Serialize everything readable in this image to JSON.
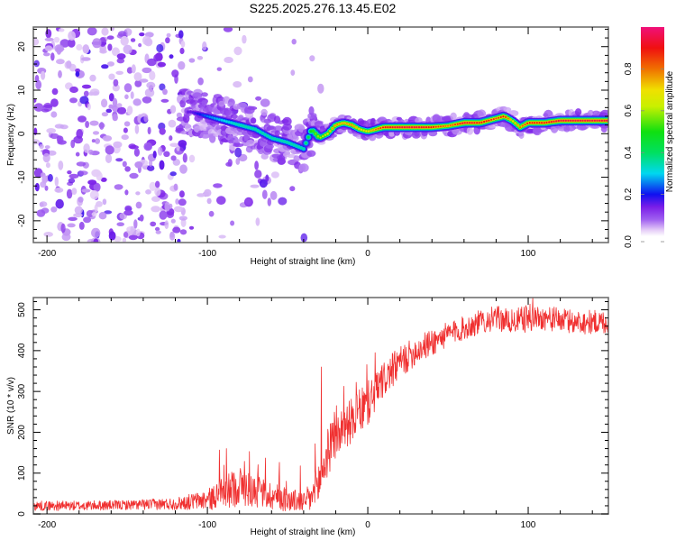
{
  "title": "S225.2025.276.13.45.E02",
  "chart_data": [
    {
      "type": "heatmap",
      "name": "spectrogram",
      "xlabel": "Height of straight line (km)",
      "ylabel": "Frequency (Hz)",
      "xlim": [
        -208.5,
        150
      ],
      "ylim": [
        -25,
        24.5
      ],
      "xticks": [
        -200,
        -100,
        0,
        100
      ],
      "xtick_labels": [
        "-200",
        "-100",
        "0",
        "100"
      ],
      "yticks": [
        -20,
        -10,
        0,
        10,
        20
      ],
      "ytick_labels": [
        "-20",
        "-10",
        "0",
        "10",
        "20"
      ],
      "grid": false,
      "colorbar": {
        "label": "Normalized spectral amplitude",
        "range": [
          0,
          1
        ],
        "ticks": [
          0.0,
          0.2,
          0.4,
          0.6,
          0.8
        ],
        "tick_labels": [
          "0.0",
          "0.2",
          "0.4",
          "0.6",
          "0.8"
        ],
        "colormap_stops": [
          {
            "v": 0.0,
            "color": "#ffffff"
          },
          {
            "v": 0.03,
            "color": "#e4ccf7"
          },
          {
            "v": 0.08,
            "color": "#a060f0"
          },
          {
            "v": 0.14,
            "color": "#7a1ee8"
          },
          {
            "v": 0.2,
            "color": "#1010f0"
          },
          {
            "v": 0.3,
            "color": "#00d8f0"
          },
          {
            "v": 0.4,
            "color": "#00e060"
          },
          {
            "v": 0.5,
            "color": "#10e010"
          },
          {
            "v": 0.62,
            "color": "#c8f000"
          },
          {
            "v": 0.7,
            "color": "#f0e000"
          },
          {
            "v": 0.8,
            "color": "#f07000"
          },
          {
            "v": 0.9,
            "color": "#f01010"
          },
          {
            "v": 1.0,
            "color": "#f0107a"
          }
        ]
      },
      "ridge_track": {
        "description": "Dominant frequency ridge vs height",
        "x": [
          -110,
          -100,
          -90,
          -80,
          -70,
          -60,
          -50,
          -40,
          -35,
          -30,
          -25,
          -20,
          -15,
          -10,
          -5,
          0,
          5,
          10,
          20,
          30,
          40,
          50,
          60,
          70,
          75,
          80,
          85,
          90,
          95,
          100,
          110,
          120,
          130,
          140,
          150
        ],
        "y": [
          5,
          4,
          3,
          2,
          1,
          -1,
          -2,
          -3.5,
          1,
          -1,
          0,
          2,
          2.5,
          2,
          1,
          0.5,
          1,
          1.5,
          1.5,
          1.5,
          1.5,
          1.8,
          2.5,
          2.5,
          3,
          3.5,
          4,
          3,
          1.5,
          2.5,
          2.5,
          3,
          3,
          3,
          3
        ],
        "amplitude": [
          0.15,
          0.25,
          0.3,
          0.35,
          0.35,
          0.35,
          0.35,
          0.35,
          0.5,
          0.6,
          0.7,
          0.8,
          0.75,
          0.8,
          0.7,
          0.7,
          0.8,
          0.9,
          0.95,
          0.95,
          0.9,
          0.8,
          0.95,
          0.9,
          0.9,
          0.85,
          0.9,
          0.7,
          0.8,
          0.9,
          0.9,
          0.95,
          0.95,
          0.95,
          0.95
        ]
      }
    },
    {
      "type": "line",
      "name": "snr",
      "xlabel": "Height of straight line (km)",
      "ylabel": "SNR (10 * v/v)",
      "xlim": [
        -208.5,
        150
      ],
      "ylim": [
        0,
        530
      ],
      "xticks": [
        -200,
        -100,
        0,
        100
      ],
      "xtick_labels": [
        "-200",
        "-100",
        "0",
        "100"
      ],
      "yticks": [
        0,
        100,
        200,
        300,
        400,
        500
      ],
      "ytick_labels": [
        "0",
        "100",
        "200",
        "300",
        "400",
        "500"
      ],
      "grid": false,
      "series": [
        {
          "name": "SNR",
          "color": "#f03030",
          "trend_x": [
            -208,
            -180,
            -150,
            -120,
            -100,
            -90,
            -80,
            -70,
            -60,
            -50,
            -40,
            -35,
            -30,
            -25,
            -20,
            -10,
            0,
            10,
            20,
            30,
            40,
            50,
            60,
            70,
            80,
            90,
            100,
            110,
            120,
            130,
            140,
            150
          ],
          "trend_y": [
            20,
            20,
            22,
            25,
            35,
            50,
            70,
            55,
            45,
            35,
            30,
            40,
            80,
            150,
            190,
            230,
            270,
            330,
            370,
            400,
            420,
            440,
            455,
            470,
            480,
            470,
            480,
            480,
            475,
            470,
            470,
            470
          ],
          "noise_amplitude": [
            12,
            12,
            12,
            15,
            25,
            40,
            50,
            40,
            35,
            30,
            25,
            40,
            60,
            60,
            55,
            55,
            55,
            45,
            40,
            35,
            35,
            30,
            30,
            30,
            30,
            30,
            35,
            30,
            30,
            30,
            30,
            30
          ],
          "spikes": [
            {
              "x": -29,
              "y": 360
            },
            {
              "x": 103,
              "y": 530
            }
          ]
        }
      ]
    }
  ]
}
